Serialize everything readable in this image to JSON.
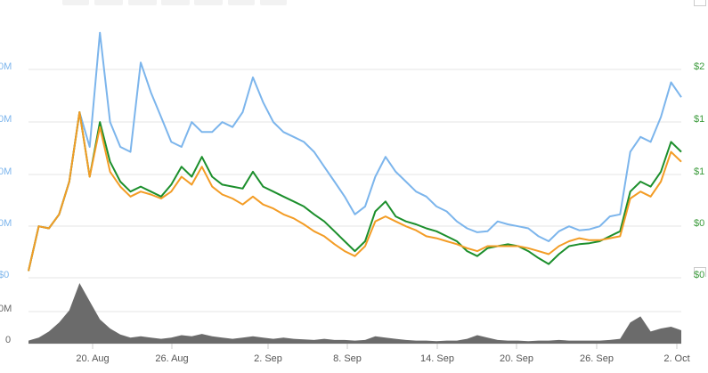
{
  "chart_data": {
    "type": "line",
    "x_ticks": [
      "20. Aug",
      "26. Aug",
      "2. Sep",
      "8. Sep",
      "14. Sep",
      "20. Sep",
      "26. Sep",
      "2. Oct"
    ],
    "left_axis_ticks": [
      "0M",
      "0M",
      "0M",
      "0M"
    ],
    "right_axis_ticks": [
      "$2",
      "$1",
      "$1",
      "$0"
    ],
    "right_axis_bottom": "$0",
    "left_axis_bottom": "$0",
    "volume_axis_ticks": [
      "0M",
      "0"
    ],
    "grid": true,
    "series": [
      {
        "color": "#7cb5ec",
        "values": [
          0.05,
          0.5,
          0.48,
          0.62,
          0.95,
          1.65,
          1.3,
          2.45,
          1.55,
          1.3,
          1.25,
          2.15,
          1.85,
          1.6,
          1.35,
          1.3,
          1.55,
          1.45,
          1.45,
          1.55,
          1.5,
          1.65,
          2.0,
          1.75,
          1.55,
          1.45,
          1.4,
          1.35,
          1.25,
          1.1,
          0.95,
          0.8,
          0.62,
          0.7,
          1.0,
          1.2,
          1.05,
          0.95,
          0.85,
          0.8,
          0.7,
          0.65,
          0.55,
          0.48,
          0.44,
          0.45,
          0.55,
          0.52,
          0.5,
          0.48,
          0.4,
          0.35,
          0.45,
          0.5,
          0.46,
          0.47,
          0.5,
          0.6,
          0.62,
          1.25,
          1.4,
          1.35,
          1.6,
          1.95,
          1.8
        ]
      },
      {
        "color": "#1c8f2c",
        "values": [
          0.05,
          0.5,
          0.48,
          0.62,
          0.95,
          1.65,
          1.0,
          1.55,
          1.15,
          0.95,
          0.85,
          0.9,
          0.85,
          0.8,
          0.92,
          1.1,
          1.0,
          1.2,
          1.0,
          0.92,
          0.9,
          0.88,
          1.05,
          0.9,
          0.85,
          0.8,
          0.75,
          0.7,
          0.62,
          0.55,
          0.45,
          0.35,
          0.25,
          0.35,
          0.65,
          0.75,
          0.6,
          0.55,
          0.52,
          0.48,
          0.45,
          0.4,
          0.35,
          0.25,
          0.2,
          0.28,
          0.3,
          0.32,
          0.3,
          0.25,
          0.18,
          0.12,
          0.22,
          0.3,
          0.32,
          0.33,
          0.35,
          0.4,
          0.45,
          0.85,
          0.95,
          0.9,
          1.05,
          1.35,
          1.25
        ]
      },
      {
        "color": "#f39c25",
        "values": [
          0.05,
          0.5,
          0.48,
          0.62,
          0.95,
          1.65,
          1.0,
          1.5,
          1.05,
          0.9,
          0.8,
          0.85,
          0.82,
          0.78,
          0.85,
          1.0,
          0.92,
          1.1,
          0.9,
          0.82,
          0.78,
          0.72,
          0.8,
          0.72,
          0.68,
          0.62,
          0.58,
          0.52,
          0.45,
          0.4,
          0.32,
          0.25,
          0.2,
          0.3,
          0.55,
          0.6,
          0.55,
          0.5,
          0.46,
          0.4,
          0.38,
          0.35,
          0.32,
          0.28,
          0.25,
          0.3,
          0.3,
          0.3,
          0.3,
          0.28,
          0.25,
          0.22,
          0.3,
          0.35,
          0.38,
          0.36,
          0.36,
          0.38,
          0.4,
          0.78,
          0.85,
          0.8,
          0.95,
          1.25,
          1.15
        ]
      }
    ],
    "volume": [
      0.05,
      0.1,
      0.2,
      0.35,
      0.55,
      1.0,
      0.7,
      0.4,
      0.25,
      0.15,
      0.1,
      0.12,
      0.1,
      0.08,
      0.1,
      0.14,
      0.12,
      0.16,
      0.12,
      0.1,
      0.08,
      0.1,
      0.12,
      0.1,
      0.08,
      0.1,
      0.08,
      0.07,
      0.06,
      0.08,
      0.06,
      0.06,
      0.05,
      0.06,
      0.12,
      0.1,
      0.08,
      0.06,
      0.05,
      0.05,
      0.04,
      0.05,
      0.05,
      0.08,
      0.14,
      0.1,
      0.06,
      0.05,
      0.05,
      0.04,
      0.05,
      0.05,
      0.06,
      0.05,
      0.05,
      0.05,
      0.05,
      0.06,
      0.08,
      0.35,
      0.45,
      0.2,
      0.25,
      0.28,
      0.22
    ]
  }
}
